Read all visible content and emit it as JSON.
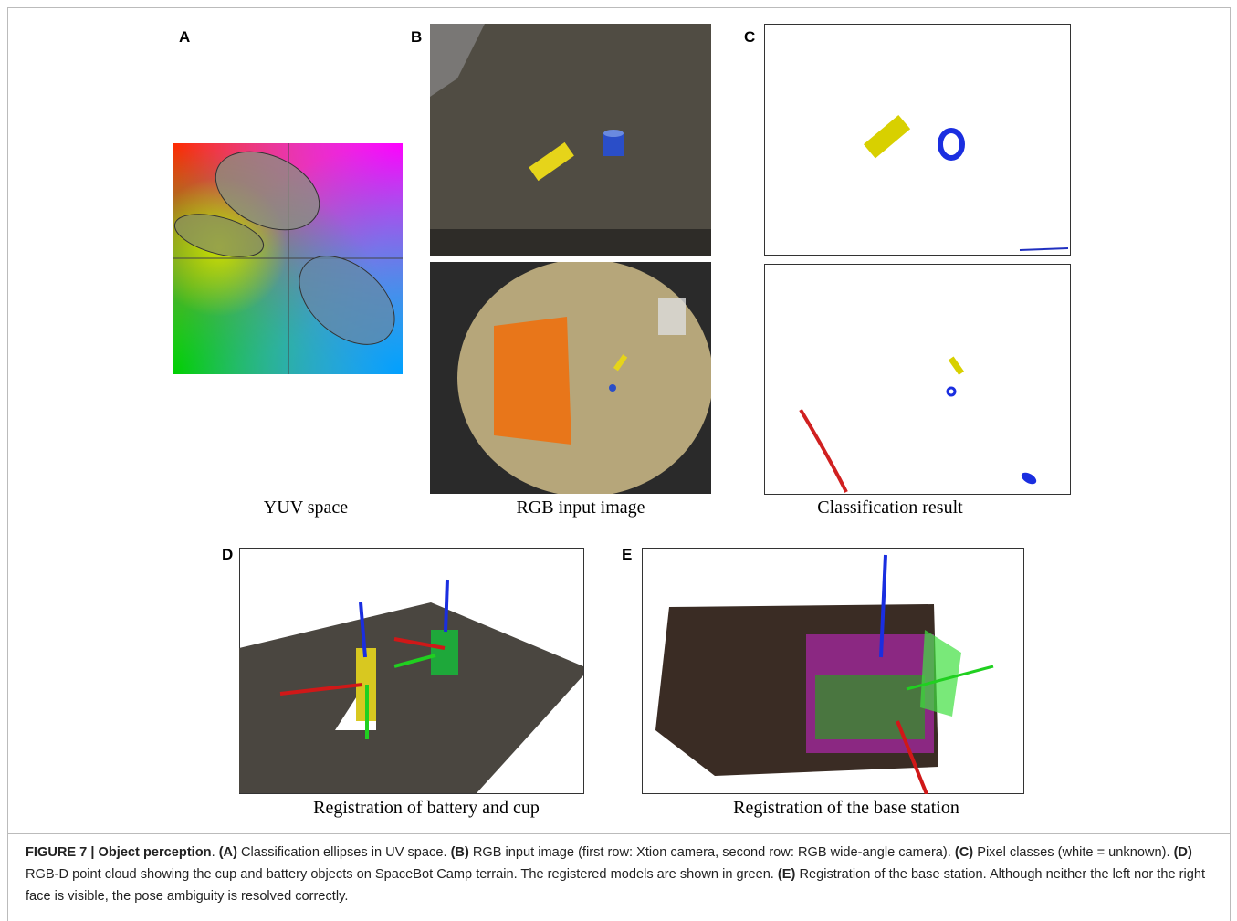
{
  "panels": [
    {
      "label": "A",
      "caption": "YUV space"
    },
    {
      "label": "B",
      "caption": "RGB input image"
    },
    {
      "label": "C",
      "caption": "Classification result"
    },
    {
      "label": "D",
      "caption": "Registration of battery and cup"
    },
    {
      "label": "E",
      "caption": "Registration of the base station"
    }
  ],
  "figure_caption": [
    {
      "text": "FIGURE 7 | Object perception",
      "bold": true
    },
    {
      "text": ". ",
      "bold": false
    },
    {
      "text": "(A)",
      "bold": true
    },
    {
      "text": " Classification ellipses in UV space. ",
      "bold": false
    },
    {
      "text": "(B)",
      "bold": true
    },
    {
      "text": " RGB input image (first row: Xtion camera, second row: RGB wide-angle camera). ",
      "bold": false
    },
    {
      "text": "(C)",
      "bold": true
    },
    {
      "text": " Pixel classes (white = unknown). ",
      "bold": false
    },
    {
      "text": "(D)",
      "bold": true
    },
    {
      "text": " RGB-D point cloud showing the cup and battery objects on SpaceBot Camp terrain. The registered models are shown in green. ",
      "bold": false
    },
    {
      "text": "(E)",
      "bold": true
    },
    {
      "text": " Registration of the base station. Although neither the left nor the right face is visible, the pose ambiguity is resolved correctly.",
      "bold": false
    }
  ]
}
